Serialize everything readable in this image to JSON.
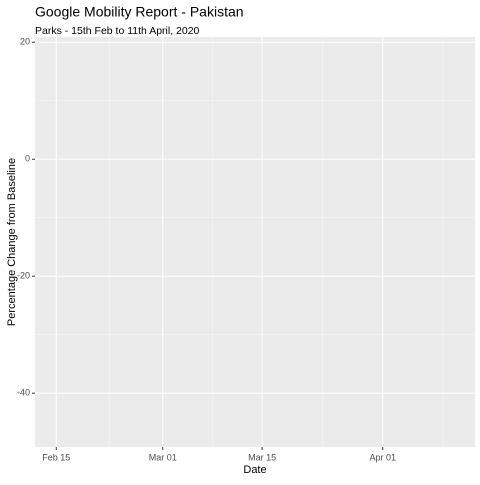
{
  "chart_data": {
    "type": "line",
    "title": "Google Mobility Report - Pakistan",
    "subtitle": "Parks - 15th Feb to 11th April, 2020",
    "x_label": "Date",
    "y_label": "Percentage Change from Baseline",
    "xlim": [
      "Feb 12",
      "Apr 14"
    ],
    "xticks": [
      "Feb 15",
      "Mar 01",
      "Mar 15",
      "Apr 01"
    ],
    "ylim": [
      -49.2,
      20.9
    ],
    "yticks": [
      20,
      0,
      -20,
      -40
    ],
    "grid": true,
    "panel_color": "#ebebeb",
    "series": []
  }
}
